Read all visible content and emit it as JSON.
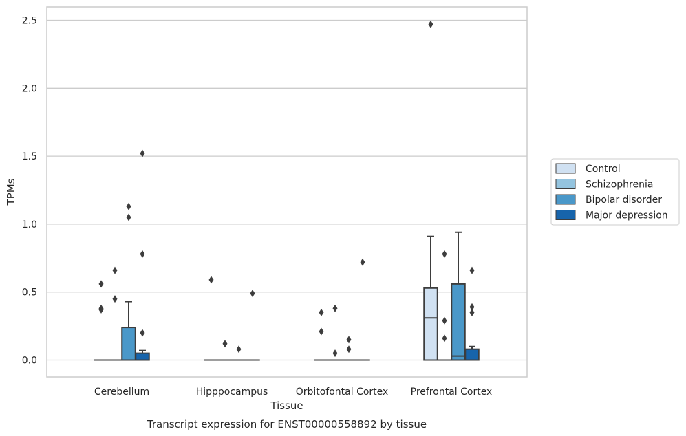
{
  "chart_data": {
    "type": "box",
    "caption": "Transcript expression for ENST00000558892 by tissue",
    "xlabel": "Tissue",
    "ylabel": "TPMs",
    "ylim": [
      -0.12,
      2.6
    ],
    "yticks": [
      "0.0",
      "0.5",
      "1.0",
      "1.5",
      "2.0",
      "2.5"
    ],
    "grid": true,
    "legend_position": "right",
    "categories": [
      "Cerebellum",
      "Hipppocampus",
      "Orbitofontal Cortex",
      "Prefrontal Cortex"
    ],
    "series": [
      {
        "name": "Control",
        "color": "#d0e1f2"
      },
      {
        "name": "Schizophrenia",
        "color": "#94c4df"
      },
      {
        "name": "Bipolar disorder",
        "color": "#4a98c9"
      },
      {
        "name": "Major depression",
        "color": "#1764ab"
      }
    ],
    "boxes": [
      {
        "category": 0,
        "series": 0,
        "q1": 0,
        "median": 0,
        "q3": 0,
        "whisker_low": 0,
        "whisker_high": 0,
        "outliers": [
          0.56,
          0.38,
          0.37
        ]
      },
      {
        "category": 0,
        "series": 1,
        "q1": 0,
        "median": 0,
        "q3": 0,
        "whisker_low": 0,
        "whisker_high": 0,
        "outliers": [
          0.66,
          0.45
        ]
      },
      {
        "category": 0,
        "series": 2,
        "q1": 0,
        "median": 0,
        "q3": 0.24,
        "whisker_low": 0,
        "whisker_high": 0.43,
        "outliers": [
          1.13,
          1.05
        ]
      },
      {
        "category": 0,
        "series": 3,
        "q1": 0,
        "median": 0,
        "q3": 0.05,
        "whisker_low": 0,
        "whisker_high": 0.07,
        "outliers": [
          1.52,
          0.78,
          0.2
        ]
      },
      {
        "category": 1,
        "series": 0,
        "q1": 0,
        "median": 0,
        "q3": 0,
        "whisker_low": 0,
        "whisker_high": 0,
        "outliers": [
          0.59
        ]
      },
      {
        "category": 1,
        "series": 1,
        "q1": 0,
        "median": 0,
        "q3": 0,
        "whisker_low": 0,
        "whisker_high": 0,
        "outliers": [
          0.12
        ]
      },
      {
        "category": 1,
        "series": 2,
        "q1": 0,
        "median": 0,
        "q3": 0,
        "whisker_low": 0,
        "whisker_high": 0,
        "outliers": [
          0.08
        ]
      },
      {
        "category": 1,
        "series": 3,
        "q1": 0,
        "median": 0,
        "q3": 0,
        "whisker_low": 0,
        "whisker_high": 0,
        "outliers": [
          0.49
        ]
      },
      {
        "category": 2,
        "series": 0,
        "q1": 0,
        "median": 0,
        "q3": 0,
        "whisker_low": 0,
        "whisker_high": 0,
        "outliers": [
          0.35,
          0.21
        ]
      },
      {
        "category": 2,
        "series": 1,
        "q1": 0,
        "median": 0,
        "q3": 0,
        "whisker_low": 0,
        "whisker_high": 0,
        "outliers": [
          0.38,
          0.05
        ]
      },
      {
        "category": 2,
        "series": 2,
        "q1": 0,
        "median": 0,
        "q3": 0,
        "whisker_low": 0,
        "whisker_high": 0,
        "outliers": [
          0.15,
          0.08
        ]
      },
      {
        "category": 2,
        "series": 3,
        "q1": 0,
        "median": 0,
        "q3": 0,
        "whisker_low": 0,
        "whisker_high": 0,
        "outliers": [
          0.72
        ]
      },
      {
        "category": 3,
        "series": 0,
        "q1": 0,
        "median": 0.31,
        "q3": 0.53,
        "whisker_low": 0,
        "whisker_high": 0.91,
        "outliers": [
          2.47
        ]
      },
      {
        "category": 3,
        "series": 1,
        "q1": 0,
        "median": 0,
        "q3": 0,
        "whisker_low": 0,
        "whisker_high": 0,
        "outliers": [
          0.78,
          0.29,
          0.16
        ]
      },
      {
        "category": 3,
        "series": 2,
        "q1": 0,
        "median": 0.03,
        "q3": 0.56,
        "whisker_low": 0,
        "whisker_high": 0.94,
        "outliers": []
      },
      {
        "category": 3,
        "series": 3,
        "q1": 0,
        "median": 0,
        "q3": 0.08,
        "whisker_low": 0,
        "whisker_high": 0.1,
        "outliers": [
          0.66,
          0.39,
          0.35
        ]
      }
    ]
  }
}
